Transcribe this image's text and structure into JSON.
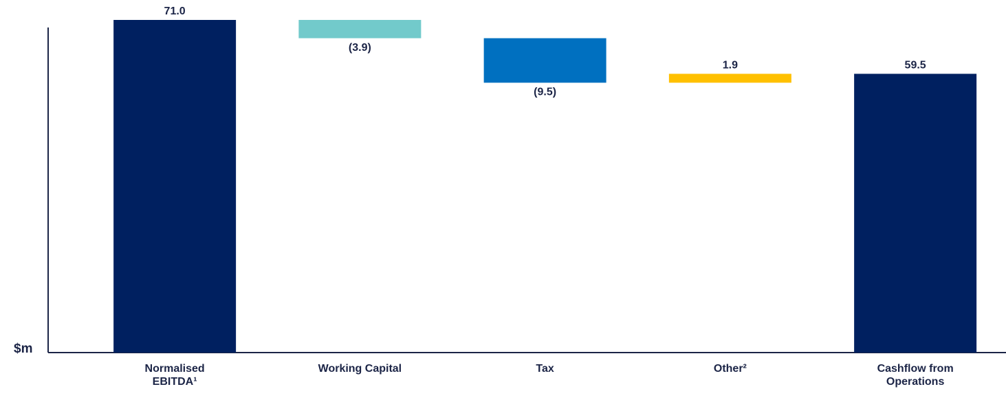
{
  "chart_data": {
    "type": "waterfall",
    "categories": [
      "Normalised EBITDA¹",
      "Working Capital",
      "Tax",
      "Other²",
      "Cashflow from Operations"
    ],
    "values": [
      71.0,
      -3.9,
      -9.5,
      1.9,
      59.5
    ],
    "value_labels": [
      "71.0",
      "(3.9)",
      "(9.5)",
      "1.9",
      "59.5"
    ],
    "totals": [
      true,
      false,
      false,
      false,
      true
    ],
    "colors": [
      "#002060",
      "#72cacb",
      "#0070c0",
      "#ffc000",
      "#002060"
    ],
    "y_label": "$m",
    "ylim": [
      0,
      71
    ]
  }
}
